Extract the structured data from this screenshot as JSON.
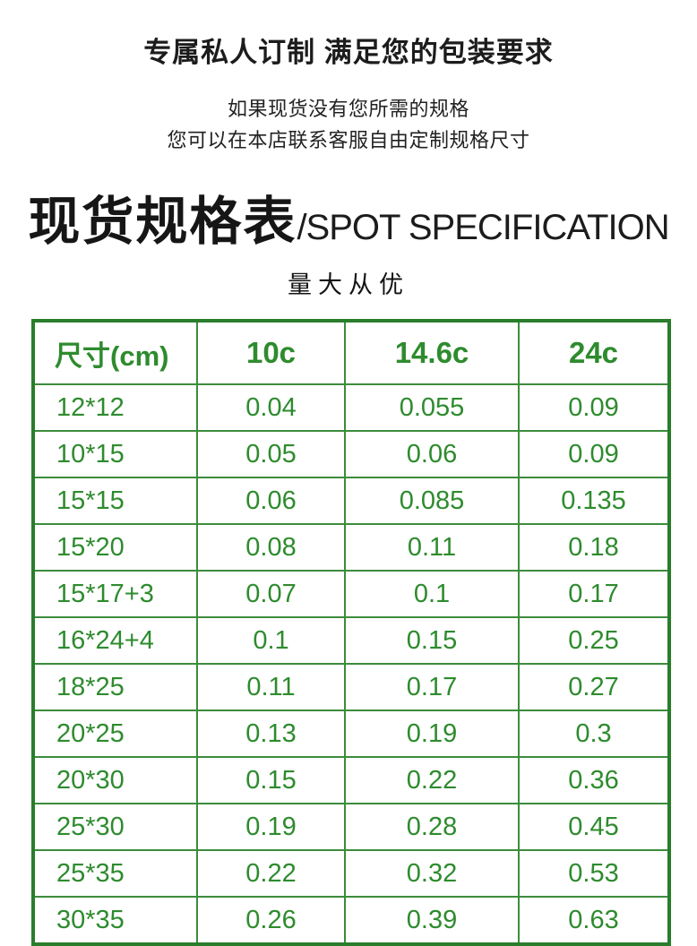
{
  "header": {
    "main_title": "专属私人订制 满足您的包装要求",
    "subtitle_line1": "如果现货没有您所需的规格",
    "subtitle_line2": "您可以在本店联系客服自由定制规格尺寸",
    "heading_cn": "现货规格表",
    "heading_en": "/SPOT SPECIFICATION",
    "tagline": "量大从优"
  },
  "colors": {
    "green_text": "#2e8b2e",
    "green_border_outer": "#2a7d2b",
    "green_border_inner": "#3c8c3c",
    "text_black": "#1c1c1c"
  },
  "spec_table": {
    "columns": [
      "尺寸(cm)",
      "10c",
      "14.6c",
      "24c"
    ],
    "rows": [
      [
        "12*12",
        "0.04",
        "0.055",
        "0.09"
      ],
      [
        "10*15",
        "0.05",
        "0.06",
        "0.09"
      ],
      [
        "15*15",
        "0.06",
        "0.085",
        "0.135"
      ],
      [
        "15*20",
        "0.08",
        "0.11",
        "0.18"
      ],
      [
        "15*17+3",
        "0.07",
        "0.1",
        "0.17"
      ],
      [
        "16*24+4",
        "0.1",
        "0.15",
        "0.25"
      ],
      [
        "18*25",
        "0.11",
        "0.17",
        "0.27"
      ],
      [
        "20*25",
        "0.13",
        "0.19",
        "0.3"
      ],
      [
        "20*30",
        "0.15",
        "0.22",
        "0.36"
      ],
      [
        "25*30",
        "0.19",
        "0.28",
        "0.45"
      ],
      [
        "25*35",
        "0.22",
        "0.32",
        "0.53"
      ],
      [
        "30*35",
        "0.26",
        "0.39",
        "0.63"
      ]
    ]
  }
}
